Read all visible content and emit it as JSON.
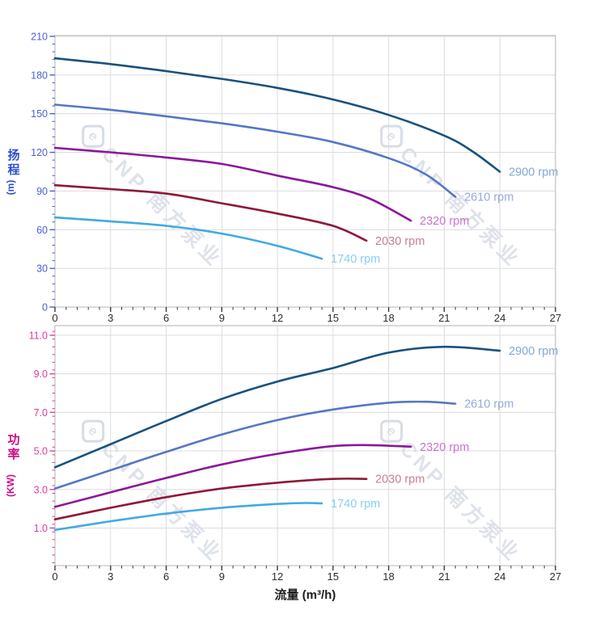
{
  "watermark": {
    "text": "CNP 南方泵业",
    "logo_letter": "e"
  },
  "palette": {
    "grid": "#dcdce0",
    "border": "#c0c0c6",
    "x_axis_tick": "#3a3a3a",
    "x_tick_label": "#2d2d2d",
    "xlabel_color": "#1c1c1c"
  },
  "chart_data": [
    {
      "type": "line",
      "title": "",
      "ylabel": "扬程 (m)",
      "ylabel_chars": [
        "扬",
        "程"
      ],
      "ylabel_unit": "(m)",
      "ylabel_color": "#2d4fc8",
      "axis_color": "#4a5fd6",
      "xlabel": "",
      "xlim": [
        0,
        27
      ],
      "ylim": [
        0,
        210.6
      ],
      "grid": true,
      "xticks": [
        0,
        3,
        6,
        9,
        12,
        15,
        18,
        21,
        24,
        27
      ],
      "xtick_labels": [
        "0",
        "3",
        "6",
        "9",
        "12",
        "15",
        "18",
        "21",
        "24",
        "27"
      ],
      "yticks": [
        0,
        30,
        60,
        90,
        120,
        150,
        180,
        210
      ],
      "ytick_labels": [
        "0",
        "30",
        "60",
        "90",
        "120",
        "150",
        "180",
        "210"
      ],
      "x_minor_step": 0.6,
      "y_minor_step": 6,
      "legend": "inline-end-labels",
      "series": [
        {
          "name": "2900 rpm",
          "color": "#19517f",
          "label_color": "#7fa8d2",
          "points": [
            [
              0,
              193
            ],
            [
              3,
              188.5
            ],
            [
              6,
              183
            ],
            [
              9,
              177
            ],
            [
              12,
              170
            ],
            [
              15,
              161
            ],
            [
              18,
              149
            ],
            [
              21,
              133
            ],
            [
              22.5,
              121
            ],
            [
              24,
              105
            ]
          ]
        },
        {
          "name": "2610 rpm",
          "color": "#5577c4",
          "label_color": "#97a8dc",
          "points": [
            [
              0,
              157
            ],
            [
              3,
              153
            ],
            [
              6,
              148
            ],
            [
              9,
              142.5
            ],
            [
              12,
              136
            ],
            [
              15,
              128
            ],
            [
              18,
              115.5
            ],
            [
              20,
              103
            ],
            [
              21.6,
              85.5
            ]
          ]
        },
        {
          "name": "2320 rpm",
          "color": "#8b179a",
          "label_color": "#c873cc",
          "points": [
            [
              0,
              123.5
            ],
            [
              3,
              120
            ],
            [
              6,
              116
            ],
            [
              9,
              111
            ],
            [
              12,
              102
            ],
            [
              15,
              93
            ],
            [
              17,
              84
            ],
            [
              19.2,
              67
            ]
          ]
        },
        {
          "name": "2030 rpm",
          "color": "#8e1838",
          "label_color": "#c77d92",
          "points": [
            [
              0,
              94.5
            ],
            [
              3,
              91.5
            ],
            [
              6,
              88
            ],
            [
              9,
              80.5
            ],
            [
              12,
              72.5
            ],
            [
              15,
              63
            ],
            [
              16.8,
              51.5
            ]
          ]
        },
        {
          "name": "1740 rpm",
          "color": "#41aae2",
          "label_color": "#86cff2",
          "points": [
            [
              0,
              69.5
            ],
            [
              3,
              66.5
            ],
            [
              6,
              63
            ],
            [
              9,
              57
            ],
            [
              12,
              47.5
            ],
            [
              14.4,
              37.5
            ]
          ]
        }
      ]
    },
    {
      "type": "line",
      "title": "",
      "ylabel": "功率 (KW)",
      "ylabel_chars": [
        "功",
        "率"
      ],
      "ylabel_unit": "(KW)",
      "ylabel_color": "#cc0d85",
      "axis_color": "#e03a9e",
      "xlabel": "流量 (m³/h)",
      "xlim": [
        0,
        27
      ],
      "ylim": [
        -0.95,
        11.5
      ],
      "grid": true,
      "xticks": [
        0,
        3,
        6,
        9,
        12,
        15,
        18,
        21,
        24,
        27
      ],
      "xtick_labels": [
        "0",
        "3",
        "6",
        "9",
        "12",
        "15",
        "18",
        "21",
        "24",
        "27"
      ],
      "yticks": [
        1,
        3,
        5,
        7,
        9,
        11
      ],
      "ytick_labels": [
        "1.0",
        "3.0",
        "5.0",
        "7.0",
        "9.0",
        "11.0"
      ],
      "x_minor_step": 0.6,
      "y_minor_step": 0.4,
      "legend": "inline-end-labels",
      "series": [
        {
          "name": "2900 rpm",
          "color": "#19517f",
          "label_color": "#7fa8d2",
          "points": [
            [
              0,
              4.15
            ],
            [
              3,
              5.35
            ],
            [
              6,
              6.55
            ],
            [
              9,
              7.7
            ],
            [
              12,
              8.6
            ],
            [
              15,
              9.3
            ],
            [
              18,
              10.1
            ],
            [
              21,
              10.4
            ],
            [
              24,
              10.2
            ]
          ]
        },
        {
          "name": "2610 rpm",
          "color": "#5577c4",
          "label_color": "#97a8dc",
          "points": [
            [
              0,
              3.05
            ],
            [
              3,
              4.0
            ],
            [
              6,
              4.95
            ],
            [
              9,
              5.85
            ],
            [
              12,
              6.6
            ],
            [
              15,
              7.15
            ],
            [
              18,
              7.5
            ],
            [
              20,
              7.55
            ],
            [
              21.6,
              7.45
            ]
          ]
        },
        {
          "name": "2320 rpm",
          "color": "#8b179a",
          "label_color": "#c873cc",
          "points": [
            [
              0,
              2.1
            ],
            [
              3,
              2.85
            ],
            [
              6,
              3.6
            ],
            [
              9,
              4.3
            ],
            [
              12,
              4.85
            ],
            [
              15,
              5.25
            ],
            [
              17,
              5.3
            ],
            [
              19.2,
              5.22
            ]
          ]
        },
        {
          "name": "2030 rpm",
          "color": "#8e1838",
          "label_color": "#c77d92",
          "points": [
            [
              0,
              1.45
            ],
            [
              3,
              2.05
            ],
            [
              6,
              2.6
            ],
            [
              9,
              3.05
            ],
            [
              12,
              3.35
            ],
            [
              15,
              3.55
            ],
            [
              16.8,
              3.55
            ]
          ]
        },
        {
          "name": "1740 rpm",
          "color": "#41aae2",
          "label_color": "#86cff2",
          "points": [
            [
              0,
              0.9
            ],
            [
              3,
              1.35
            ],
            [
              6,
              1.75
            ],
            [
              9,
              2.05
            ],
            [
              12,
              2.25
            ],
            [
              13.5,
              2.3
            ],
            [
              14.4,
              2.28
            ]
          ]
        }
      ]
    }
  ]
}
